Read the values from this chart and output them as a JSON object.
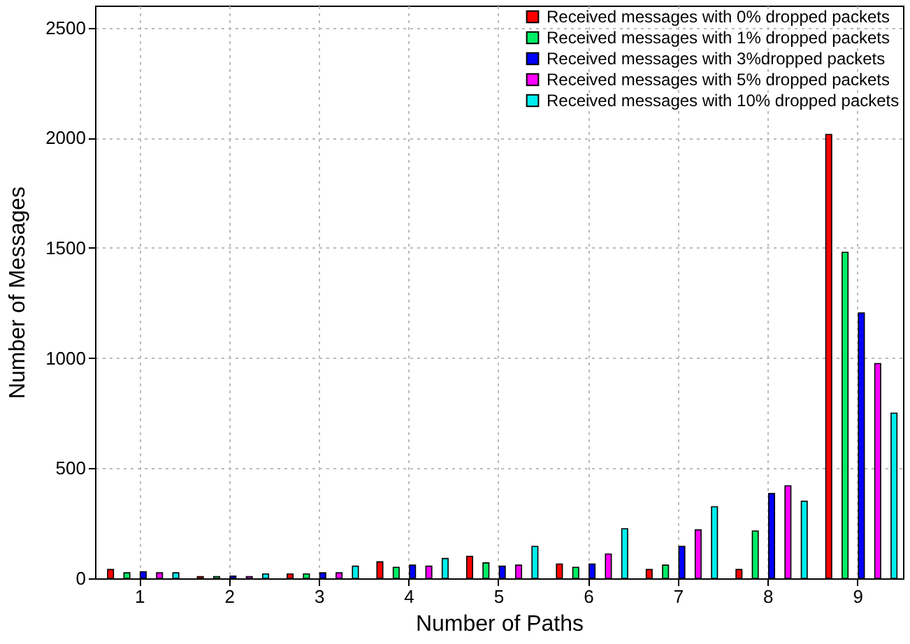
{
  "chart_data": {
    "type": "bar",
    "xlabel": "Number of Paths",
    "ylabel": "Number of Messages",
    "categories": [
      "1",
      "2",
      "3",
      "4",
      "5",
      "6",
      "7",
      "8",
      "9"
    ],
    "series": [
      {
        "name": "Received messages with 0% dropped packets",
        "color": "#ff0000",
        "values": [
          40,
          8,
          20,
          75,
          100,
          65,
          40,
          40,
          2015
        ]
      },
      {
        "name": "Received messages with 1% dropped packets",
        "color": "#00ee66",
        "values": [
          25,
          8,
          20,
          50,
          70,
          50,
          60,
          215,
          1480
        ]
      },
      {
        "name": "Received messages with 3%dropped packets",
        "color": "#0000ff",
        "values": [
          30,
          10,
          25,
          60,
          55,
          65,
          145,
          385,
          1205
        ]
      },
      {
        "name": "Received messages with 5% dropped packets",
        "color": "#ff00ff",
        "values": [
          25,
          8,
          25,
          55,
          60,
          110,
          220,
          420,
          975
        ]
      },
      {
        "name": "Received messages with 10% dropped packets",
        "color": "#00eeee",
        "values": [
          25,
          20,
          55,
          90,
          145,
          225,
          325,
          350,
          750
        ]
      }
    ],
    "ylim": [
      0,
      2600
    ],
    "yticks": [
      0,
      500,
      1000,
      1500,
      2000,
      2500
    ],
    "grid": true,
    "legend": "top right"
  }
}
